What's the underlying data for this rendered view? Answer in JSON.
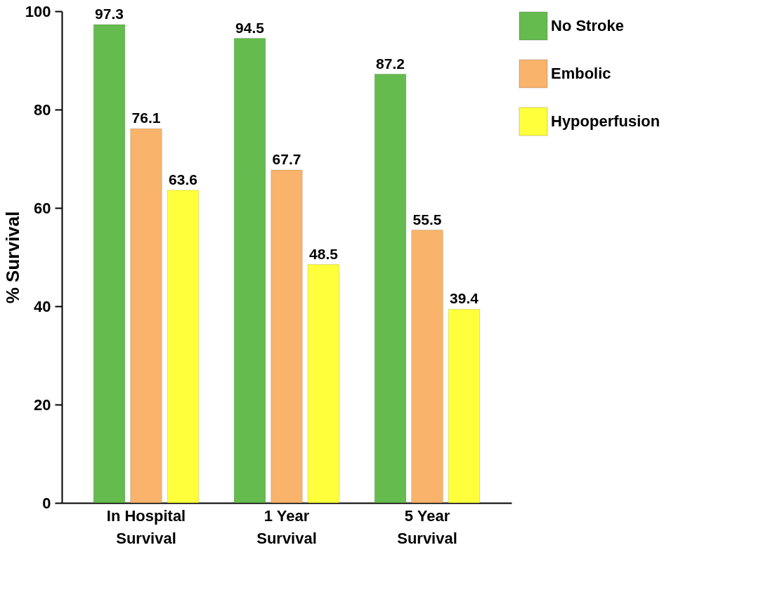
{
  "chart_data": {
    "type": "bar",
    "ylabel": "% Survival",
    "categories": [
      "In Hospital Survival",
      "1 Year Survival",
      "5 Year Survival"
    ],
    "series": [
      {
        "name": "No Stroke",
        "color": "#66bb4f",
        "values": [
          97.3,
          94.5,
          87.2
        ]
      },
      {
        "name": "Embolic",
        "color": "#f9b36b",
        "values": [
          76.1,
          67.7,
          55.5
        ]
      },
      {
        "name": "Hypoperfusion",
        "color": "#ffff3c",
        "values": [
          63.6,
          48.5,
          39.4
        ]
      }
    ],
    "ylim": [
      0,
      100
    ],
    "yticks": [
      0,
      20,
      40,
      60,
      80,
      100
    ],
    "grid": false,
    "legend": "top right",
    "data_labels": true
  }
}
